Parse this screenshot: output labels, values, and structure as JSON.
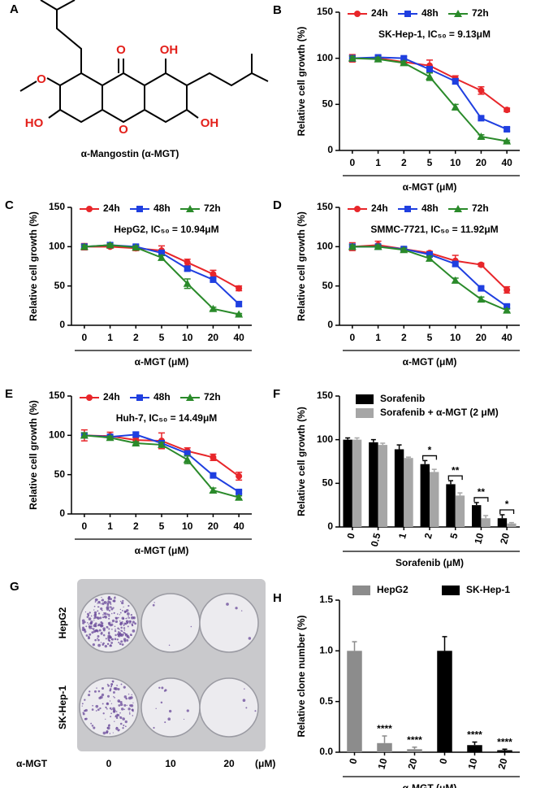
{
  "structure": {
    "panel": "A",
    "caption": "α-Mangostin (α-MGT)",
    "atoms": [
      "O",
      "OH",
      "O",
      "HO",
      "O",
      "OH"
    ]
  },
  "plate": {
    "panel": "G",
    "rows": [
      "HepG2",
      "SK-Hep-1"
    ],
    "treatment": "α-MGT",
    "doses": [
      "0",
      "10",
      "20"
    ],
    "unit": "(μM)"
  },
  "chart_data": [
    {
      "type": "line",
      "panel": "B",
      "title": "SK-Hep-1, IC₅₀ = 9.13μM",
      "xlabel": "α-MGT (μM)",
      "ylabel": "Relative cell growth (%)",
      "categories": [
        "0",
        "1",
        "2",
        "5",
        "10",
        "20",
        "40"
      ],
      "ylim": [
        0,
        150
      ],
      "yticks": [
        0,
        50,
        100,
        150
      ],
      "series": [
        {
          "name": "24h",
          "color": "#e8262a",
          "marker": "circle",
          "values": [
            100,
            100,
            96,
            92,
            78,
            65,
            44
          ],
          "errors": [
            4,
            3,
            2,
            6,
            3,
            4,
            2
          ]
        },
        {
          "name": "48h",
          "color": "#1f3fe0",
          "marker": "square",
          "values": [
            100,
            101,
            100,
            88,
            75,
            35,
            23
          ],
          "errors": [
            3,
            2,
            2,
            3,
            3,
            2,
            2
          ]
        },
        {
          "name": "72h",
          "color": "#2a8a2a",
          "marker": "triangle",
          "values": [
            100,
            99,
            95,
            80,
            47,
            15,
            10
          ],
          "errors": [
            2,
            2,
            2,
            4,
            3,
            2,
            1
          ]
        }
      ]
    },
    {
      "type": "line",
      "panel": "C",
      "title": "HepG2, IC₅₀ = 10.94μM",
      "xlabel": "α-MGT (μM)",
      "ylabel": "Relative cell growth (%)",
      "categories": [
        "0",
        "1",
        "2",
        "5",
        "10",
        "20",
        "40"
      ],
      "ylim": [
        0,
        150
      ],
      "yticks": [
        0,
        50,
        100,
        150
      ],
      "series": [
        {
          "name": "24h",
          "color": "#e8262a",
          "marker": "circle",
          "values": [
            100,
            100,
            98,
            95,
            80,
            65,
            47
          ],
          "errors": [
            4,
            2,
            3,
            6,
            4,
            5,
            3
          ]
        },
        {
          "name": "48h",
          "color": "#1f3fe0",
          "marker": "square",
          "values": [
            100,
            102,
            100,
            92,
            72,
            58,
            27
          ],
          "errors": [
            3,
            3,
            2,
            3,
            3,
            2,
            3
          ]
        },
        {
          "name": "72h",
          "color": "#2a8a2a",
          "marker": "triangle",
          "values": [
            100,
            102,
            99,
            86,
            53,
            21,
            14
          ],
          "errors": [
            2,
            2,
            2,
            3,
            6,
            2,
            1
          ]
        }
      ]
    },
    {
      "type": "line",
      "panel": "D",
      "title": "SMMC-7721, IC₅₀ = 11.92μM",
      "xlabel": "α-MGT (μM)",
      "ylabel": "Relative cell growth (%)",
      "categories": [
        "0",
        "1",
        "2",
        "5",
        "10",
        "20",
        "40"
      ],
      "ylim": [
        0,
        150
      ],
      "yticks": [
        0,
        50,
        100,
        150
      ],
      "series": [
        {
          "name": "24h",
          "color": "#e8262a",
          "marker": "circle",
          "values": [
            100,
            102,
            97,
            92,
            82,
            77,
            45
          ],
          "errors": [
            5,
            5,
            2,
            2,
            7,
            2,
            4
          ]
        },
        {
          "name": "48h",
          "color": "#1f3fe0",
          "marker": "square",
          "values": [
            100,
            100,
            97,
            90,
            78,
            47,
            24
          ],
          "errors": [
            3,
            2,
            2,
            2,
            3,
            2,
            2
          ]
        },
        {
          "name": "72h",
          "color": "#2a8a2a",
          "marker": "triangle",
          "values": [
            100,
            100,
            96,
            85,
            57,
            33,
            19
          ],
          "errors": [
            2,
            2,
            2,
            3,
            3,
            3,
            2
          ]
        }
      ]
    },
    {
      "type": "line",
      "panel": "E",
      "title": "Huh-7, IC₅₀ = 14.49μM",
      "xlabel": "α-MGT (μM)",
      "ylabel": "Relative cell growth (%)",
      "categories": [
        "0",
        "1",
        "2",
        "5",
        "10",
        "20",
        "40"
      ],
      "ylim": [
        0,
        150
      ],
      "yticks": [
        0,
        50,
        100,
        150
      ],
      "series": [
        {
          "name": "24h",
          "color": "#e8262a",
          "marker": "circle",
          "values": [
            100,
            99,
            94,
            93,
            80,
            72,
            48
          ],
          "errors": [
            7,
            5,
            3,
            10,
            4,
            4,
            5
          ]
        },
        {
          "name": "48h",
          "color": "#1f3fe0",
          "marker": "square",
          "values": [
            100,
            98,
            101,
            90,
            77,
            49,
            28
          ],
          "errors": [
            3,
            2,
            3,
            3,
            3,
            3,
            2
          ]
        },
        {
          "name": "72h",
          "color": "#2a8a2a",
          "marker": "triangle",
          "values": [
            100,
            97,
            90,
            88,
            69,
            30,
            21
          ],
          "errors": [
            3,
            2,
            2,
            3,
            5,
            3,
            2
          ]
        }
      ]
    },
    {
      "type": "bar",
      "panel": "F",
      "xlabel": "Sorafenib (μM)",
      "ylabel": "Relative cell growth (%)",
      "categories": [
        "0",
        "0.5",
        "1",
        "2",
        "5",
        "10",
        "20"
      ],
      "ylim": [
        0,
        150
      ],
      "yticks": [
        0,
        50,
        100,
        150
      ],
      "legend": "top-left",
      "series": [
        {
          "name": "Sorafenib",
          "color": "#000000",
          "values": [
            100,
            97,
            89,
            72,
            49,
            25,
            10
          ],
          "errors": [
            2,
            3,
            5,
            4,
            4,
            3,
            4
          ]
        },
        {
          "name": "Sorafenib + α-MGT (2 μM)",
          "color": "#a6a6a6",
          "values": [
            100,
            94,
            79,
            63,
            36,
            10,
            4
          ],
          "errors": [
            2,
            2,
            1,
            3,
            3,
            3,
            1
          ]
        }
      ],
      "annotations": [
        {
          "x": 3,
          "text": "*"
        },
        {
          "x": 4,
          "text": "**"
        },
        {
          "x": 5,
          "text": "**"
        },
        {
          "x": 6,
          "text": "*"
        }
      ]
    },
    {
      "type": "bar",
      "panel": "H",
      "xlabel": "α-MGT (μM)",
      "ylabel": "Relative clone number (%)",
      "categories": [
        "0",
        "10",
        "20",
        "0",
        "10",
        "20"
      ],
      "ylim": [
        0,
        1.5
      ],
      "yticks": [
        {
          "value": 0,
          "label": "0.0"
        },
        {
          "value": 0.5,
          "label": "0.5"
        },
        {
          "value": 1,
          "label": "1.0"
        },
        {
          "value": 1.5,
          "label": "1.5"
        }
      ],
      "legend": "top",
      "series": [
        {
          "name": "HepG2",
          "color": "#8c8c8c",
          "values": [
            1.0,
            0.09,
            0.03,
            null,
            null,
            null
          ],
          "errors": [
            0.09,
            0.07,
            0.02,
            null,
            null,
            null
          ]
        },
        {
          "name": "SK-Hep-1",
          "color": "#000000",
          "values": [
            null,
            null,
            null,
            1.0,
            0.07,
            0.02
          ],
          "errors": [
            null,
            null,
            null,
            0.14,
            0.03,
            0.01
          ]
        }
      ],
      "annotations": [
        {
          "x": 1,
          "text": "****"
        },
        {
          "x": 2,
          "text": "****"
        },
        {
          "x": 4,
          "text": "****"
        },
        {
          "x": 5,
          "text": "****"
        }
      ]
    }
  ]
}
